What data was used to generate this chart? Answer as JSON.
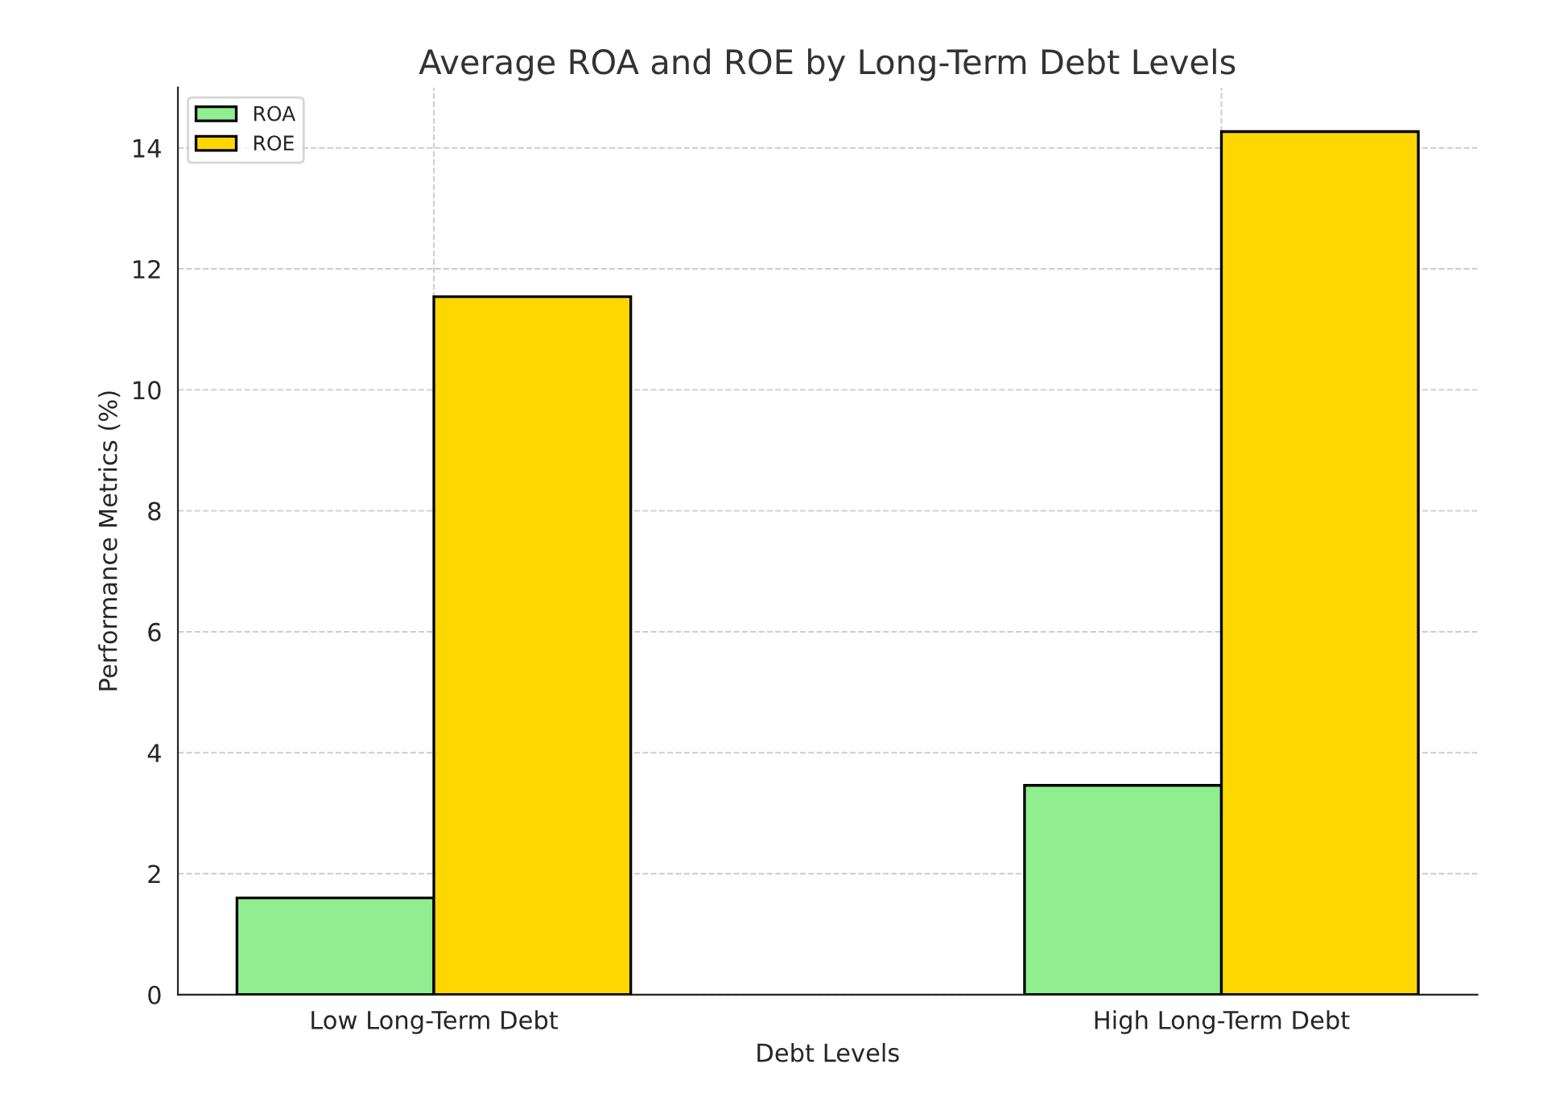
{
  "chart_data": {
    "type": "bar",
    "title": "Average ROA and ROE by Long-Term Debt Levels",
    "xlabel": "Debt Levels",
    "ylabel": "Performance Metrics (%)",
    "categories": [
      "Low Long-Term Debt",
      "High Long-Term Debt"
    ],
    "series": [
      {
        "name": "ROA",
        "color": "#90ee90",
        "values": [
          1.6,
          3.46
        ]
      },
      {
        "name": "ROE",
        "color": "#ffd700",
        "values": [
          11.54,
          14.27
        ]
      }
    ],
    "ylim": [
      0,
      15
    ],
    "yticks": [
      0,
      2,
      4,
      6,
      8,
      10,
      12,
      14
    ],
    "grid": true,
    "legend": "top left"
  }
}
